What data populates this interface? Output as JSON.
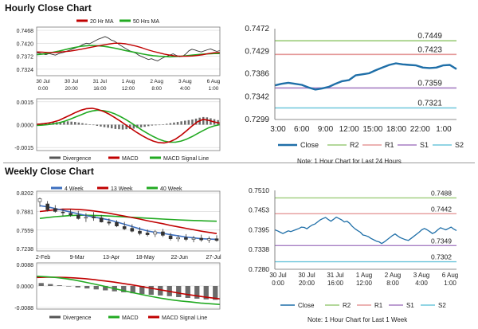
{
  "hourly": {
    "title": "Hourly Close Chart",
    "left": {
      "price": {
        "type": "line",
        "yticks": [
          "0.7468",
          "0.7420",
          "0.7372",
          "0.7324"
        ],
        "xticks": [
          [
            "30 Jul",
            "0:00"
          ],
          [
            "30 Jul",
            "20:00"
          ],
          [
            "31 Jul",
            "16:00"
          ],
          [
            "1 Aug",
            "12:00"
          ],
          [
            "2 Aug",
            "8:00"
          ],
          [
            "3 Aug",
            "4:00"
          ],
          [
            "6 Aug",
            "1:00"
          ]
        ],
        "legend": [
          {
            "name": "20 Hr MA",
            "color": "#c00000"
          },
          {
            "name": "50 Hrs MA",
            "color": "#22aa22"
          }
        ],
        "ylim": [
          0.73,
          0.748
        ],
        "close": [
          0.7385,
          0.7383,
          0.738,
          0.7378,
          0.7382,
          0.7379,
          0.7376,
          0.7381,
          0.7384,
          0.7387,
          0.7392,
          0.7396,
          0.7401,
          0.7405,
          0.741,
          0.7416,
          0.742,
          0.7418,
          0.7424,
          0.743,
          0.7436,
          0.744,
          0.7445,
          0.744,
          0.7432,
          0.7428,
          0.742,
          0.7412,
          0.7405,
          0.7398,
          0.7392,
          0.7388,
          0.7383,
          0.7375,
          0.737,
          0.7365,
          0.736,
          0.7363,
          0.7358,
          0.7355,
          0.7362,
          0.7368,
          0.7372,
          0.7377,
          0.7381,
          0.7375,
          0.737,
          0.7372,
          0.738,
          0.7392,
          0.7398,
          0.7395,
          0.7391,
          0.7388,
          0.7392,
          0.7396,
          0.7399,
          0.7394,
          0.739,
          0.7393
        ],
        "ma20": [
          0.7388,
          0.7387,
          0.7386,
          0.7386,
          0.7387,
          0.7389,
          0.7391,
          0.7394,
          0.7398,
          0.7402,
          0.7406,
          0.741,
          0.7414,
          0.7417,
          0.742,
          0.742,
          0.7418,
          0.7414,
          0.7409,
          0.7403,
          0.7396,
          0.739,
          0.7385,
          0.738,
          0.7376,
          0.7373,
          0.7372,
          0.7372,
          0.7373,
          0.7375,
          0.7378,
          0.7382,
          0.7385,
          0.7386
        ],
        "ma50": [
          0.7378,
          0.738,
          0.7383,
          0.7387,
          0.7391,
          0.7396,
          0.7401,
          0.7405,
          0.7409,
          0.7411,
          0.7412,
          0.7411,
          0.7409,
          0.7406,
          0.7402,
          0.7398,
          0.7393,
          0.7389,
          0.7385,
          0.7381,
          0.7377,
          0.7374,
          0.7372,
          0.7371,
          0.737,
          0.7371,
          0.7372,
          0.7374,
          0.7376,
          0.7378,
          0.738,
          0.7381,
          0.7382,
          0.7382
        ]
      },
      "macd": {
        "type": "bar+line",
        "yticks": [
          "0.0015",
          "0.0000",
          "-0.0015"
        ],
        "ylim": [
          -0.0017,
          0.0017
        ],
        "legend": [
          {
            "name": "Divergence",
            "color": "#555555"
          },
          {
            "name": "MACD",
            "color": "#c00000"
          },
          {
            "name": "MACD Signal Line",
            "color": "#22aa22"
          }
        ],
        "divergence": [
          8e-05,
          0.0001,
          0.00012,
          0.00014,
          0.00015,
          0.00016,
          0.00018,
          0.0002,
          0.00022,
          0.0002,
          0.00018,
          0.00014,
          0.0001,
          6e-05,
          2e-05,
          -3e-05,
          -8e-05,
          -0.00012,
          -0.00016,
          -0.0002,
          -0.00024,
          -0.00028,
          -0.0003,
          -0.00032,
          -0.0003,
          -0.00028,
          -0.00026,
          -0.00022,
          -0.00018,
          -0.00014,
          -0.0001,
          -6e-05,
          -4e-05,
          -2e-05,
          2e-05,
          6e-05,
          0.0001,
          0.00014,
          0.00018,
          0.00022,
          0.00026,
          0.0003,
          0.00034,
          0.0004,
          0.00046,
          0.0005,
          0.00048,
          0.00042,
          0.00036,
          0.0003
        ],
        "macd": [
          2e-05,
          5e-05,
          0.0001,
          0.00018,
          0.00028,
          0.00045,
          0.00062,
          0.0008,
          0.00095,
          0.00105,
          0.00108,
          0.001,
          0.00088,
          0.0007,
          0.00048,
          0.00025,
          0.0,
          -0.00025,
          -0.0005,
          -0.00072,
          -0.00092,
          -0.00108,
          -0.00118,
          -0.0012,
          -0.00112,
          -0.00095,
          -0.0007,
          -0.0004,
          -8e-05,
          0.0002,
          0.00035,
          0.00028,
          0.00018,
          0.0001
        ],
        "signal": [
          -5e-05,
          -3e-05,
          0.0,
          5e-05,
          0.00012,
          0.00022,
          0.00035,
          0.0005,
          0.00065,
          0.0008,
          0.0009,
          0.00095,
          0.00092,
          0.00085,
          0.00072,
          0.00055,
          0.00035,
          0.00012,
          -0.00012,
          -0.00036,
          -0.00058,
          -0.00078,
          -0.00095,
          -0.00108,
          -0.00115,
          -0.00115,
          -0.00108,
          -0.00095,
          -0.00078,
          -0.00058,
          -0.00038,
          -0.0002,
          -8e-05,
          0.0
        ]
      }
    },
    "right": {
      "type": "line",
      "yticks": [
        "0.7472",
        "0.7429",
        "0.7386",
        "0.7342",
        "0.7299"
      ],
      "ylim": [
        0.7299,
        0.7472
      ],
      "xticks": [
        "3:00",
        "6:00",
        "9:00",
        "12:00",
        "15:00",
        "18:00",
        "22:00",
        "1:00"
      ],
      "levels": [
        {
          "name": "R2",
          "value": 0.7449,
          "label": "0.7449",
          "color": "#9ccc7a"
        },
        {
          "name": "R1",
          "value": 0.7423,
          "label": "0.7423",
          "color": "#e59a9a"
        },
        {
          "name": "S1",
          "value": 0.7359,
          "label": "0.7359",
          "color": "#a77fc4"
        },
        {
          "name": "S2",
          "value": 0.7321,
          "label": "0.7321",
          "color": "#6fc7dc"
        }
      ],
      "close": [
        0.7364,
        0.7367,
        0.7369,
        0.7367,
        0.7365,
        0.736,
        0.7356,
        0.7358,
        0.7361,
        0.7367,
        0.7372,
        0.7374,
        0.7383,
        0.7385,
        0.7387,
        0.7393,
        0.7398,
        0.7403,
        0.7406,
        0.7404,
        0.7403,
        0.7402,
        0.7398,
        0.7397,
        0.7398,
        0.7402,
        0.7403,
        0.7395
      ],
      "legend": [
        {
          "name": "Close",
          "color": "#1f6fa8"
        },
        {
          "name": "R2",
          "color": "#9ccc7a"
        },
        {
          "name": "R1",
          "color": "#e59a9a"
        },
        {
          "name": "S1",
          "color": "#a77fc4"
        },
        {
          "name": "S2",
          "color": "#6fc7dc"
        }
      ],
      "note": "Note: 1 Hour Chart for Last 24 Hours"
    }
  },
  "weekly": {
    "title": "Weekly Close Chart",
    "left": {
      "price": {
        "type": "candlestick+line",
        "yticks": [
          "0.8202",
          "0.7881",
          "0.7559",
          "0.7238"
        ],
        "ylim": [
          0.72,
          0.823
        ],
        "xticks": [
          "2-Feb",
          "9-Mar",
          "13-Apr",
          "18-May",
          "22-Jun",
          "27-Jul"
        ],
        "legend": [
          {
            "name": "4 Week",
            "color": "#3d6fbf"
          },
          {
            "name": "13 Week",
            "color": "#c00000"
          },
          {
            "name": "40 Week",
            "color": "#22aa22"
          }
        ],
        "candles": [
          [
            0.805,
            0.812,
            0.796,
            0.81
          ],
          [
            0.801,
            0.806,
            0.788,
            0.791
          ],
          [
            0.793,
            0.799,
            0.786,
            0.788
          ],
          [
            0.787,
            0.793,
            0.78,
            0.786
          ],
          [
            0.785,
            0.792,
            0.779,
            0.782
          ],
          [
            0.782,
            0.789,
            0.774,
            0.776
          ],
          [
            0.777,
            0.785,
            0.77,
            0.778
          ],
          [
            0.779,
            0.787,
            0.772,
            0.777
          ],
          [
            0.777,
            0.782,
            0.769,
            0.77
          ],
          [
            0.77,
            0.776,
            0.764,
            0.768
          ],
          [
            0.769,
            0.773,
            0.761,
            0.763
          ],
          [
            0.762,
            0.77,
            0.756,
            0.758
          ],
          [
            0.759,
            0.766,
            0.752,
            0.754
          ],
          [
            0.754,
            0.761,
            0.747,
            0.75
          ],
          [
            0.751,
            0.757,
            0.745,
            0.748
          ],
          [
            0.749,
            0.756,
            0.744,
            0.753
          ],
          [
            0.753,
            0.758,
            0.744,
            0.747
          ],
          [
            0.746,
            0.751,
            0.738,
            0.741
          ],
          [
            0.741,
            0.747,
            0.736,
            0.743
          ],
          [
            0.743,
            0.749,
            0.737,
            0.74
          ],
          [
            0.74,
            0.746,
            0.735,
            0.742
          ],
          [
            0.742,
            0.748,
            0.736,
            0.739
          ],
          [
            0.739,
            0.745,
            0.734,
            0.741
          ],
          [
            0.741,
            0.747,
            0.736,
            0.738
          ]
        ],
        "ma4": [
          0.798,
          0.796,
          0.793,
          0.79,
          0.787,
          0.784,
          0.781,
          0.7785,
          0.776,
          0.7735,
          0.77,
          0.766,
          0.762,
          0.758,
          0.7545,
          0.752,
          0.7505,
          0.748,
          0.746,
          0.744,
          0.7425,
          0.741,
          0.7405,
          0.74
        ],
        "ma13": [
          0.788,
          0.7895,
          0.791,
          0.792,
          0.792,
          0.7915,
          0.7905,
          0.789,
          0.787,
          0.785,
          0.7825,
          0.78,
          0.7775,
          0.775,
          0.772,
          0.7695,
          0.767,
          0.764,
          0.7615,
          0.759,
          0.7565,
          0.754,
          0.752,
          0.75
        ],
        "ma40": [
          0.776,
          0.7775,
          0.779,
          0.78,
          0.781,
          0.7815,
          0.7815,
          0.7812,
          0.7808,
          0.7802,
          0.7795,
          0.7788,
          0.778,
          0.7772,
          0.7765,
          0.7757,
          0.775,
          0.7742,
          0.7735,
          0.773,
          0.7725,
          0.772,
          0.7716,
          0.7712
        ]
      },
      "macd": {
        "type": "bar+line",
        "yticks": [
          "0.0088",
          "0.0000",
          "-0.0088"
        ],
        "ylim": [
          -0.0095,
          0.0095
        ],
        "legend": [
          {
            "name": "Divergence",
            "color": "#555555"
          },
          {
            "name": "MACD",
            "color": "#22aa22"
          },
          {
            "name": "MACD Signal Line",
            "color": "#c00000"
          }
        ],
        "divergence": [
          0.0012,
          0.0008,
          0.0003,
          -0.0002,
          -0.0006,
          -0.001,
          -0.0014,
          -0.0018,
          -0.0022,
          -0.0026,
          -0.003,
          -0.0033,
          -0.0036,
          -0.0039,
          -0.0042,
          -0.0046,
          -0.0049,
          -0.0052,
          -0.0055,
          -0.0057
        ],
        "macd": [
          0.004,
          0.0038,
          0.0035,
          0.003,
          0.0024,
          0.0016,
          0.0008,
          -0.0001,
          -0.001,
          -0.0019,
          -0.0028,
          -0.0036,
          -0.0044,
          -0.0051,
          -0.0057,
          -0.0062,
          -0.0066,
          -0.007,
          -0.0073,
          -0.0076
        ],
        "signal": [
          0.0035,
          0.0036,
          0.0036,
          0.0035,
          0.0033,
          0.003,
          0.0026,
          0.0021,
          0.0016,
          0.001,
          0.0004,
          -0.0003,
          -0.001,
          -0.0017,
          -0.0024,
          -0.0031,
          -0.0037,
          -0.0043,
          -0.0048,
          -0.0053
        ]
      }
    },
    "right": {
      "type": "line",
      "yticks": [
        "0.7510",
        "0.7453",
        "0.7395",
        "0.7338",
        "0.7280"
      ],
      "ylim": [
        0.728,
        0.751
      ],
      "xticks": [
        [
          "30 Jul",
          "0:00"
        ],
        [
          "30 Jul",
          "20:00"
        ],
        [
          "31 Jul",
          "16:00"
        ],
        [
          "1 Aug",
          "12:00"
        ],
        [
          "2 Aug",
          "8:00"
        ],
        [
          "3 Aug",
          "4:00"
        ],
        [
          "6 Aug",
          "1:00"
        ]
      ],
      "levels": [
        {
          "name": "R2",
          "value": 0.7488,
          "label": "0.7488",
          "color": "#9ccc7a"
        },
        {
          "name": "R1",
          "value": 0.7442,
          "label": "0.7442",
          "color": "#e59a9a"
        },
        {
          "name": "S1",
          "value": 0.7349,
          "label": "0.7349",
          "color": "#a77fc4"
        },
        {
          "name": "S2",
          "value": 0.7302,
          "label": "0.7302",
          "color": "#6fc7dc"
        }
      ],
      "close": [
        0.7395,
        0.7392,
        0.7388,
        0.7384,
        0.7388,
        0.7392,
        0.739,
        0.7393,
        0.7396,
        0.7399,
        0.7403,
        0.7402,
        0.7398,
        0.7404,
        0.7409,
        0.7412,
        0.7418,
        0.7424,
        0.7428,
        0.7431,
        0.7425,
        0.742,
        0.7426,
        0.7432,
        0.7428,
        0.7424,
        0.7418,
        0.742,
        0.7414,
        0.7405,
        0.7398,
        0.7393,
        0.7388,
        0.738,
        0.7378,
        0.7375,
        0.737,
        0.7366,
        0.7362,
        0.736,
        0.7355,
        0.736,
        0.7366,
        0.7372,
        0.7378,
        0.7383,
        0.7377,
        0.7372,
        0.7369,
        0.7366,
        0.7364,
        0.737,
        0.7376,
        0.7382,
        0.7388,
        0.7395,
        0.7399,
        0.7395,
        0.739,
        0.7384,
        0.7388,
        0.7395,
        0.7401,
        0.7398,
        0.7395,
        0.7399,
        0.7403,
        0.7397,
        0.7393
      ],
      "legend": [
        {
          "name": "Close",
          "color": "#1f6fa8"
        },
        {
          "name": "R2",
          "color": "#9ccc7a"
        },
        {
          "name": "R1",
          "color": "#e59a9a"
        },
        {
          "name": "S1",
          "color": "#a77fc4"
        },
        {
          "name": "S2",
          "color": "#6fc7dc"
        }
      ],
      "note": "Note: 1 Hour Chart for Last 1 Week"
    }
  },
  "chart_data": [
    {
      "type": "line",
      "title": "Hourly Close Chart",
      "series": [
        {
          "name": "20 Hr MA"
        },
        {
          "name": "50 Hrs MA"
        }
      ],
      "ylim": [
        0.73,
        0.748
      ]
    },
    {
      "type": "line",
      "title": "",
      "series": [
        {
          "name": "Divergence"
        },
        {
          "name": "MACD"
        },
        {
          "name": "MACD Signal Line"
        }
      ],
      "ylim": [
        -0.0017,
        0.0017
      ]
    },
    {
      "type": "line",
      "title": "",
      "series": [
        {
          "name": "Close"
        },
        {
          "name": "R2",
          "values": [
            0.7449
          ]
        },
        {
          "name": "R1",
          "values": [
            0.7423
          ]
        },
        {
          "name": "S1",
          "values": [
            0.7359
          ]
        },
        {
          "name": "S2",
          "values": [
            0.7321
          ]
        }
      ],
      "ylim": [
        0.7299,
        0.7472
      ]
    },
    {
      "type": "line",
      "title": "Weekly Close Chart",
      "series": [
        {
          "name": "4 Week"
        },
        {
          "name": "13 Week"
        },
        {
          "name": "40 Week"
        }
      ],
      "ylim": [
        0.72,
        0.823
      ]
    },
    {
      "type": "line",
      "title": "",
      "series": [
        {
          "name": "Divergence"
        },
        {
          "name": "MACD"
        },
        {
          "name": "MACD Signal Line"
        }
      ],
      "ylim": [
        -0.0095,
        0.0095
      ]
    },
    {
      "type": "line",
      "title": "",
      "series": [
        {
          "name": "Close"
        },
        {
          "name": "R2",
          "values": [
            0.7488
          ]
        },
        {
          "name": "R1",
          "values": [
            0.7442
          ]
        },
        {
          "name": "S1",
          "values": [
            0.7349
          ]
        },
        {
          "name": "S2",
          "values": [
            0.7302
          ]
        }
      ],
      "ylim": [
        0.728,
        0.751
      ]
    }
  ]
}
